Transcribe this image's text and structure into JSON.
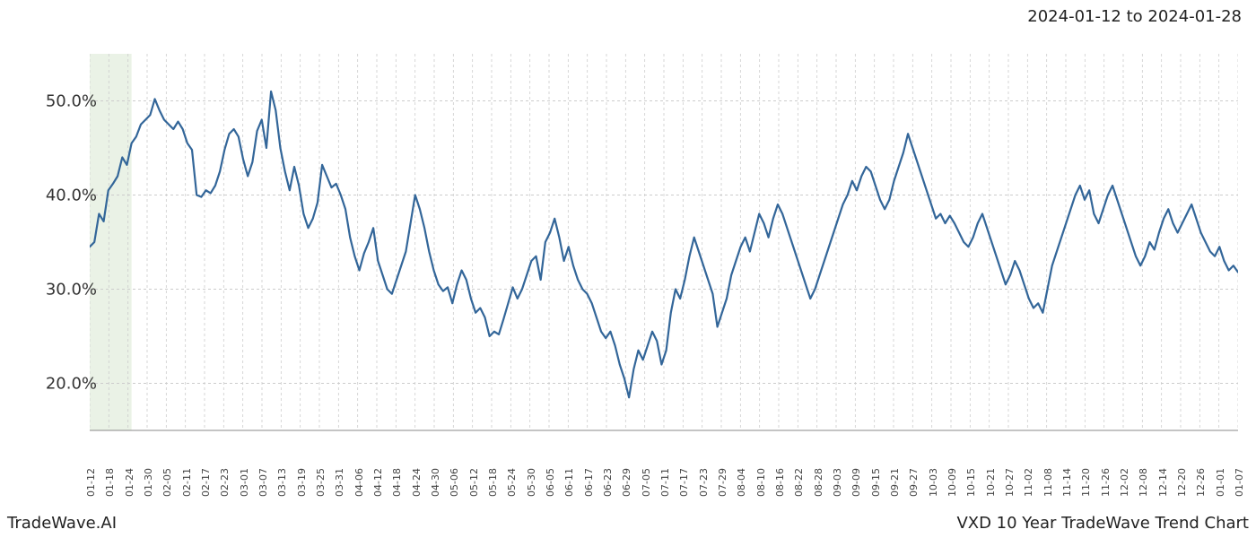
{
  "date_range": "2024-01-12 to 2024-01-28",
  "footer_left": "TradeWave.AI",
  "footer_right": "VXD 10 Year TradeWave Trend Chart",
  "chart": {
    "type": "line",
    "background_color": "#ffffff",
    "line_color": "#336699",
    "line_width": 2.2,
    "grid_color": "#cccccc",
    "grid_dash": "3,3",
    "highlight_band": {
      "fill": "#d9e8d1",
      "opacity": 0.55,
      "x_start": 0,
      "x_end": 9
    },
    "y_axis": {
      "min": 15,
      "max": 55,
      "ticks": [
        20,
        30,
        40,
        50
      ],
      "tick_labels": [
        "20.0%",
        "30.0%",
        "40.0%",
        "50.0%"
      ],
      "label_fontsize": 18,
      "label_color": "#333333"
    },
    "x_axis": {
      "labels": [
        "01-12",
        "01-18",
        "01-24",
        "01-30",
        "02-05",
        "02-11",
        "02-17",
        "02-23",
        "03-01",
        "03-07",
        "03-13",
        "03-19",
        "03-25",
        "03-31",
        "04-06",
        "04-12",
        "04-18",
        "04-24",
        "04-30",
        "05-06",
        "05-12",
        "05-18",
        "05-24",
        "05-30",
        "06-05",
        "06-11",
        "06-17",
        "06-23",
        "06-29",
        "07-05",
        "07-11",
        "07-17",
        "07-23",
        "07-29",
        "08-04",
        "08-10",
        "08-16",
        "08-22",
        "08-28",
        "09-03",
        "09-09",
        "09-15",
        "09-21",
        "09-27",
        "10-03",
        "10-09",
        "10-15",
        "10-21",
        "10-27",
        "11-02",
        "11-08",
        "11-14",
        "11-20",
        "11-26",
        "12-02",
        "12-08",
        "12-14",
        "12-20",
        "12-26",
        "01-01",
        "01-07"
      ],
      "label_fontsize": 11,
      "label_color": "#444444",
      "rotation": -90
    },
    "series": {
      "name": "VXD",
      "values": [
        34.5,
        35.0,
        38.0,
        37.2,
        40.5,
        41.2,
        42.0,
        44.0,
        43.2,
        45.5,
        46.2,
        47.5,
        48.0,
        48.5,
        50.2,
        49.0,
        48.0,
        47.5,
        47.0,
        47.8,
        47.0,
        45.5,
        44.8,
        40.0,
        39.8,
        40.5,
        40.2,
        41.0,
        42.5,
        44.8,
        46.5,
        47.0,
        46.2,
        43.8,
        42.0,
        43.5,
        46.8,
        48.0,
        45.0,
        51.0,
        49.0,
        45.0,
        42.5,
        40.5,
        43.0,
        41.0,
        38.0,
        36.5,
        37.5,
        39.2,
        43.2,
        42.0,
        40.8,
        41.2,
        40.0,
        38.5,
        35.5,
        33.5,
        32.0,
        33.8,
        35.0,
        36.5,
        33.0,
        31.5,
        30.0,
        29.5,
        31.0,
        32.5,
        34.0,
        37.0,
        40.0,
        38.5,
        36.5,
        34.0,
        32.0,
        30.5,
        29.8,
        30.2,
        28.5,
        30.5,
        32.0,
        31.0,
        29.0,
        27.5,
        28.0,
        27.0,
        25.0,
        25.5,
        25.2,
        26.8,
        28.5,
        30.2,
        29.0,
        30.0,
        31.5,
        33.0,
        33.5,
        31.0,
        35.0,
        36.0,
        37.5,
        35.5,
        33.0,
        34.5,
        32.5,
        31.0,
        30.0,
        29.5,
        28.5,
        27.0,
        25.5,
        24.8,
        25.5,
        24.0,
        22.0,
        20.5,
        18.5,
        21.5,
        23.5,
        22.5,
        24.0,
        25.5,
        24.5,
        22.0,
        23.5,
        27.5,
        30.0,
        29.0,
        31.0,
        33.5,
        35.5,
        34.0,
        32.5,
        31.0,
        29.5,
        26.0,
        27.5,
        29.0,
        31.5,
        33.0,
        34.5,
        35.5,
        34.0,
        36.0,
        38.0,
        37.0,
        35.5,
        37.5,
        39.0,
        38.0,
        36.5,
        35.0,
        33.5,
        32.0,
        30.5,
        29.0,
        30.0,
        31.5,
        33.0,
        34.5,
        36.0,
        37.5,
        39.0,
        40.0,
        41.5,
        40.5,
        42.0,
        43.0,
        42.5,
        41.0,
        39.5,
        38.5,
        39.5,
        41.5,
        43.0,
        44.5,
        46.5,
        45.0,
        43.5,
        42.0,
        40.5,
        39.0,
        37.5,
        38.0,
        37.0,
        37.8,
        37.0,
        36.0,
        35.0,
        34.5,
        35.5,
        37.0,
        38.0,
        36.5,
        35.0,
        33.5,
        32.0,
        30.5,
        31.5,
        33.0,
        32.0,
        30.5,
        29.0,
        28.0,
        28.5,
        27.5,
        30.0,
        32.5,
        34.0,
        35.5,
        37.0,
        38.5,
        40.0,
        41.0,
        39.5,
        40.5,
        38.0,
        37.0,
        38.5,
        40.0,
        41.0,
        39.5,
        38.0,
        36.5,
        35.0,
        33.5,
        32.5,
        33.5,
        35.0,
        34.2,
        36.0,
        37.5,
        38.5,
        37.0,
        36.0,
        37.0,
        38.0,
        39.0,
        37.5,
        36.0,
        35.0,
        34.0,
        33.5,
        34.5,
        33.0,
        32.0,
        32.5,
        31.8
      ]
    }
  }
}
